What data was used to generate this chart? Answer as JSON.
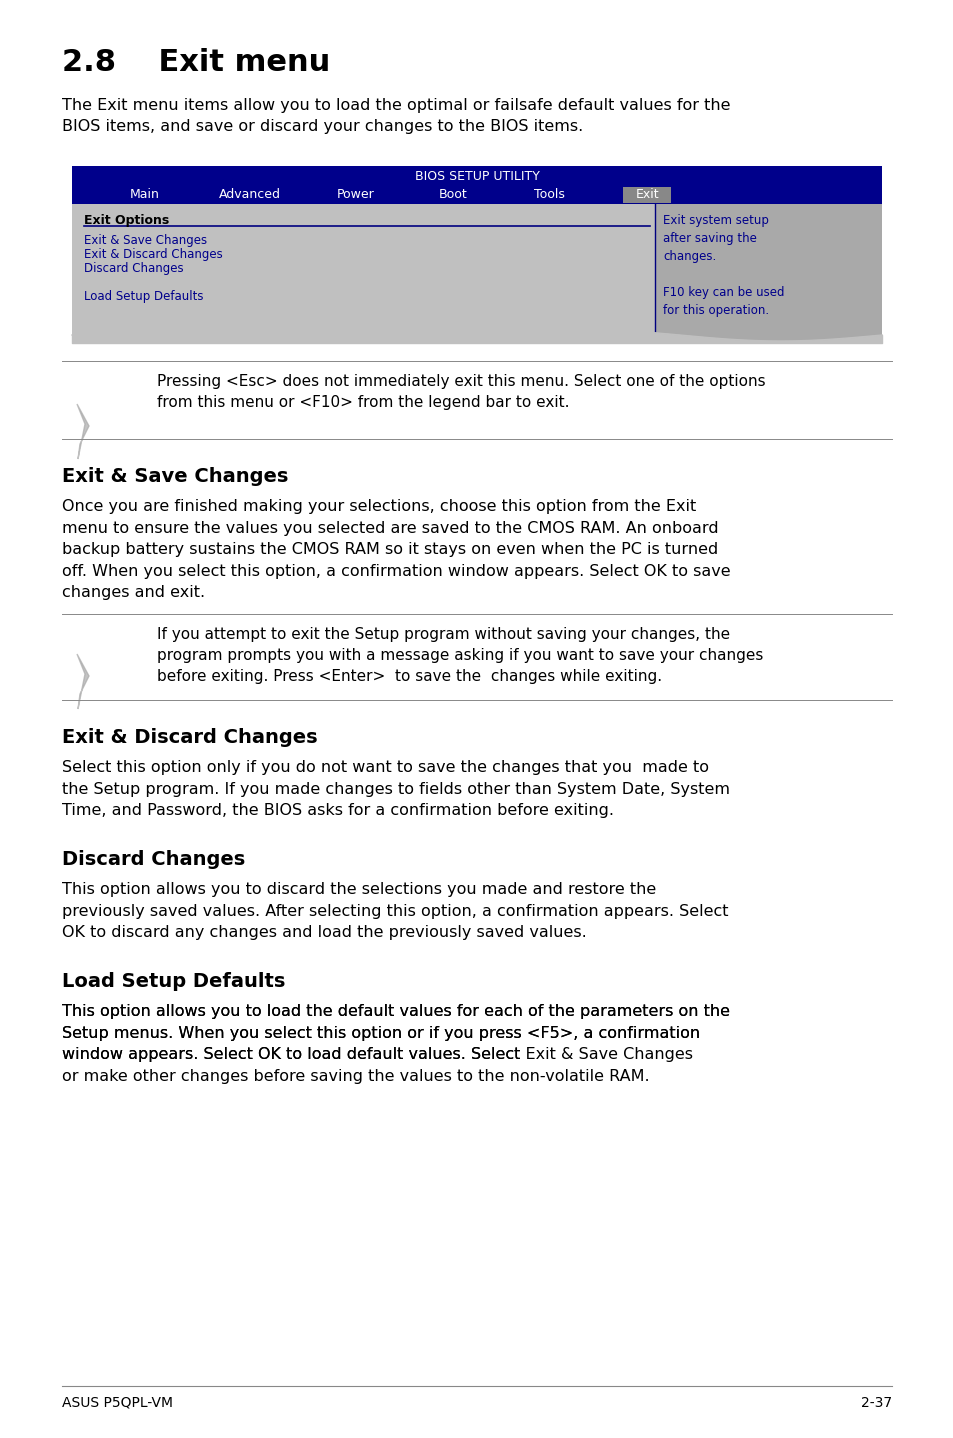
{
  "title": "2.8    Exit menu",
  "intro_text": "The Exit menu items allow you to load the optimal or failsafe default values for the\nBIOS items, and save or discard your changes to the BIOS items.",
  "bios_title": "BIOS SETUP UTILITY",
  "nav_items": [
    "Main",
    "Advanced",
    "Power",
    "Boot",
    "Tools",
    "Exit"
  ],
  "nav_active": "Exit",
  "bios_left_header": "Exit Options",
  "bios_left_items": [
    "Exit & Save Changes",
    "Exit & Discard Changes",
    "Discard Changes",
    "",
    "Load Setup Defaults"
  ],
  "bios_right_text": "Exit system setup\nafter saving the\nchanges.\n\nF10 key can be used\nfor this operation.",
  "note1_text": "Pressing <Esc> does not immediately exit this menu. Select one of the options\nfrom this menu or <F10> from the legend bar to exit.",
  "section1_title": "Exit & Save Changes",
  "section1_body": "Once you are finished making your selections, choose this option from the Exit\nmenu to ensure the values you selected are saved to the CMOS RAM. An onboard\nbackup battery sustains the CMOS RAM so it stays on even when the PC is turned\noff. When you select this option, a confirmation window appears. Select OK to save\nchanges and exit.",
  "note2_text": "If you attempt to exit the Setup program without saving your changes, the\nprogram prompts you with a message asking if you want to save your changes\nbefore exiting. Press <Enter>  to save the  changes while exiting.",
  "section2_title": "Exit & Discard Changes",
  "section2_body": "Select this option only if you do not want to save the changes that you  made to\nthe Setup program. If you made changes to fields other than System Date, System\nTime, and Password, the BIOS asks for a confirmation before exiting.",
  "section3_title": "Discard Changes",
  "section3_body": "This option allows you to discard the selections you made and restore the\npreviously saved values. After selecting this option, a confirmation appears. Select\nOK to discard any changes and load the previously saved values.",
  "section4_title": "Load Setup Defaults",
  "section4_body": "This option allows you to load the default values for each of the parameters on the\nSetup menus. When you select this option or if you press <F5>, a confirmation\nwindow appears. Select OK to load default values. Select Exit & Save Changes\nor make other changes before saving the values to the non-volatile RAM.",
  "footer_left": "ASUS P5QPL-VM",
  "footer_right": "2-37",
  "bg_color": "#ffffff",
  "bios_header_bg": "#00008B",
  "bios_header_text": "#ffffff",
  "bios_nav_active_bg": "#808080",
  "bios_body_bg": "#c0c0c0",
  "bios_item_color": "#00008B",
  "bios_right_bg": "#a9a9a9",
  "mono_font_color": "#00008B"
}
